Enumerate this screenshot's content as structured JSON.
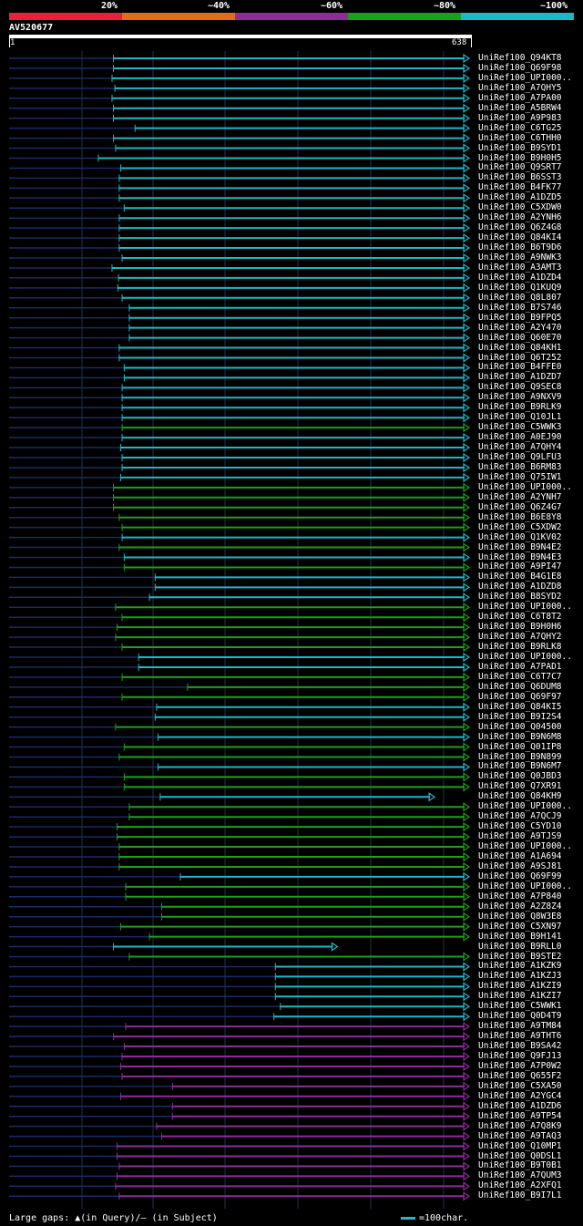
{
  "legend": [
    {
      "label": "20%",
      "color": "#e8213a"
    },
    {
      "label": "~40%",
      "color": "#e36b1c"
    },
    {
      "label": "~60%",
      "color": "#8f2b9b"
    },
    {
      "label": "~80%",
      "color": "#1aa11a"
    },
    {
      "label": "~100%",
      "color": "#1ab8c8"
    }
  ],
  "query": {
    "id": "AV520677",
    "start": "1",
    "end": "638"
  },
  "hits": [
    {
      "name": "UniRef100_Q94KT8",
      "color": "#1ab8c8",
      "start": 145,
      "end": 638
    },
    {
      "name": "UniRef100_Q69F98",
      "color": "#1ab8c8",
      "start": 145,
      "end": 638
    },
    {
      "name": "UniRef100_UPI000..",
      "color": "#1ab8c8",
      "start": 143,
      "end": 638
    },
    {
      "name": "UniRef100_A7QHY5",
      "color": "#1ab8c8",
      "start": 147,
      "end": 638
    },
    {
      "name": "UniRef100_A7PA00",
      "color": "#1ab8c8",
      "start": 143,
      "end": 638
    },
    {
      "name": "UniRef100_A5BRW4",
      "color": "#1ab8c8",
      "start": 145,
      "end": 638
    },
    {
      "name": "UniRef100_A9P983",
      "color": "#1ab8c8",
      "start": 145,
      "end": 638
    },
    {
      "name": "UniRef100_C6TG25",
      "color": "#1ab8c8",
      "start": 175,
      "end": 638
    },
    {
      "name": "UniRef100_C6THH0",
      "color": "#1ab8c8",
      "start": 145,
      "end": 638
    },
    {
      "name": "UniRef100_B9SYD1",
      "color": "#1ab8c8",
      "start": 148,
      "end": 638
    },
    {
      "name": "UniRef100_B9H0H5",
      "color": "#1ab8c8",
      "start": 124,
      "end": 638
    },
    {
      "name": "UniRef100_Q9SRT7",
      "color": "#1ab8c8",
      "start": 155,
      "end": 638
    },
    {
      "name": "UniRef100_B6SST3",
      "color": "#1ab8c8",
      "start": 153,
      "end": 638
    },
    {
      "name": "UniRef100_B4FK77",
      "color": "#1ab8c8",
      "start": 153,
      "end": 638
    },
    {
      "name": "UniRef100_A1DZD5",
      "color": "#1ab8c8",
      "start": 153,
      "end": 638
    },
    {
      "name": "UniRef100_C5XDW0",
      "color": "#1ab8c8",
      "start": 160,
      "end": 638
    },
    {
      "name": "UniRef100_A2YNH6",
      "color": "#1ab8c8",
      "start": 153,
      "end": 638
    },
    {
      "name": "UniRef100_Q6Z4G8",
      "color": "#1ab8c8",
      "start": 153,
      "end": 638
    },
    {
      "name": "UniRef100_Q84KI4",
      "color": "#1ab8c8",
      "start": 153,
      "end": 638
    },
    {
      "name": "UniRef100_B6T9D6",
      "color": "#1ab8c8",
      "start": 153,
      "end": 638
    },
    {
      "name": "UniRef100_A9NWK3",
      "color": "#1ab8c8",
      "start": 157,
      "end": 638
    },
    {
      "name": "UniRef100_A3AMT3",
      "color": "#1ab8c8",
      "start": 143,
      "end": 638
    },
    {
      "name": "UniRef100_A1DZD4",
      "color": "#1ab8c8",
      "start": 152,
      "end": 638
    },
    {
      "name": "UniRef100_Q1KUQ9",
      "color": "#1ab8c8",
      "start": 151,
      "end": 638
    },
    {
      "name": "UniRef100_Q8L807",
      "color": "#1ab8c8",
      "start": 157,
      "end": 638
    },
    {
      "name": "UniRef100_B7S746",
      "color": "#1ab8c8",
      "start": 167,
      "end": 638
    },
    {
      "name": "UniRef100_B9FPQ5",
      "color": "#1ab8c8",
      "start": 167,
      "end": 638
    },
    {
      "name": "UniRef100_A2Y470",
      "color": "#1ab8c8",
      "start": 167,
      "end": 638
    },
    {
      "name": "UniRef100_Q60E70",
      "color": "#1ab8c8",
      "start": 167,
      "end": 638
    },
    {
      "name": "UniRef100_Q84KH1",
      "color": "#1ab8c8",
      "start": 153,
      "end": 638
    },
    {
      "name": "UniRef100_Q6T252",
      "color": "#1ab8c8",
      "start": 153,
      "end": 638
    },
    {
      "name": "UniRef100_B4FFE0",
      "color": "#1ab8c8",
      "start": 160,
      "end": 638
    },
    {
      "name": "UniRef100_A1DZD7",
      "color": "#1ab8c8",
      "start": 160,
      "end": 638
    },
    {
      "name": "UniRef100_Q9SEC8",
      "color": "#1ab8c8",
      "start": 157,
      "end": 638
    },
    {
      "name": "UniRef100_A9NXV9",
      "color": "#1ab8c8",
      "start": 157,
      "end": 638
    },
    {
      "name": "UniRef100_B9RLK9",
      "color": "#1ab8c8",
      "start": 157,
      "end": 638
    },
    {
      "name": "UniRef100_Q10JL1",
      "color": "#1ab8c8",
      "start": 157,
      "end": 638
    },
    {
      "name": "UniRef100_C5WWK3",
      "color": "#1aa11a",
      "start": 157,
      "end": 638
    },
    {
      "name": "UniRef100_A0EJ90",
      "color": "#1ab8c8",
      "start": 157,
      "end": 638
    },
    {
      "name": "UniRef100_A7QHY4",
      "color": "#1ab8c8",
      "start": 155,
      "end": 638
    },
    {
      "name": "UniRef100_Q9LFU3",
      "color": "#1ab8c8",
      "start": 157,
      "end": 638
    },
    {
      "name": "UniRef100_B6RM83",
      "color": "#1ab8c8",
      "start": 157,
      "end": 638
    },
    {
      "name": "UniRef100_Q75IW1",
      "color": "#1ab8c8",
      "start": 155,
      "end": 638
    },
    {
      "name": "UniRef100_UPI000..",
      "color": "#1aa11a",
      "start": 145,
      "end": 638
    },
    {
      "name": "UniRef100_A2YNH7",
      "color": "#1aa11a",
      "start": 145,
      "end": 638
    },
    {
      "name": "UniRef100_Q6Z4G7",
      "color": "#1aa11a",
      "start": 145,
      "end": 638
    },
    {
      "name": "UniRef100_B6E8Y8",
      "color": "#1aa11a",
      "start": 153,
      "end": 638
    },
    {
      "name": "UniRef100_C5XDW2",
      "color": "#1aa11a",
      "start": 157,
      "end": 638
    },
    {
      "name": "UniRef100_Q1KV02",
      "color": "#1ab8c8",
      "start": 157,
      "end": 638
    },
    {
      "name": "UniRef100_B9N4E2",
      "color": "#1aa11a",
      "start": 153,
      "end": 638
    },
    {
      "name": "UniRef100_B9N4E3",
      "color": "#1ab8c8",
      "start": 160,
      "end": 638
    },
    {
      "name": "UniRef100_A9PI47",
      "color": "#1aa11a",
      "start": 160,
      "end": 638
    },
    {
      "name": "UniRef100_B4G1E8",
      "color": "#1ab8c8",
      "start": 203,
      "end": 638
    },
    {
      "name": "UniRef100_A1DZD8",
      "color": "#1ab8c8",
      "start": 203,
      "end": 638
    },
    {
      "name": "UniRef100_B8SYD2",
      "color": "#1ab8c8",
      "start": 195,
      "end": 638
    },
    {
      "name": "UniRef100_UPI000..",
      "color": "#1aa11a",
      "start": 148,
      "end": 638
    },
    {
      "name": "UniRef100_C6T8T2",
      "color": "#1aa11a",
      "start": 157,
      "end": 638
    },
    {
      "name": "UniRef100_B9H0H6",
      "color": "#1aa11a",
      "start": 150,
      "end": 638
    },
    {
      "name": "UniRef100_A7QHY2",
      "color": "#1aa11a",
      "start": 148,
      "end": 638
    },
    {
      "name": "UniRef100_B9RLK8",
      "color": "#1aa11a",
      "start": 157,
      "end": 638
    },
    {
      "name": "UniRef100_UPI000..",
      "color": "#1ab8c8",
      "start": 180,
      "end": 638
    },
    {
      "name": "UniRef100_A7PAD1",
      "color": "#1ab8c8",
      "start": 180,
      "end": 638
    },
    {
      "name": "UniRef100_C6T7C7",
      "color": "#1aa11a",
      "start": 157,
      "end": 638
    },
    {
      "name": "UniRef100_Q6DUM8",
      "color": "#1aa11a",
      "start": 248,
      "end": 638
    },
    {
      "name": "UniRef100_Q69F97",
      "color": "#1aa11a",
      "start": 157,
      "end": 638
    },
    {
      "name": "UniRef100_Q84KI5",
      "color": "#1ab8c8",
      "start": 205,
      "end": 638
    },
    {
      "name": "UniRef100_B9I2S4",
      "color": "#1ab8c8",
      "start": 203,
      "end": 638
    },
    {
      "name": "UniRef100_Q04500",
      "color": "#1aa11a",
      "start": 148,
      "end": 638
    },
    {
      "name": "UniRef100_B9N6M8",
      "color": "#1ab8c8",
      "start": 207,
      "end": 638
    },
    {
      "name": "UniRef100_Q01IP8",
      "color": "#1aa11a",
      "start": 160,
      "end": 638
    },
    {
      "name": "UniRef100_B9N899",
      "color": "#1aa11a",
      "start": 153,
      "end": 638
    },
    {
      "name": "UniRef100_B9N6M7",
      "color": "#1ab8c8",
      "start": 207,
      "end": 638
    },
    {
      "name": "UniRef100_Q0JBD3",
      "color": "#1aa11a",
      "start": 160,
      "end": 638
    },
    {
      "name": "UniRef100_Q7XR91",
      "color": "#1aa11a",
      "start": 160,
      "end": 638
    },
    {
      "name": "UniRef100_Q84KH9",
      "color": "#1ab8c8",
      "start": 210,
      "end": 590
    },
    {
      "name": "UniRef100_UPI000..",
      "color": "#1aa11a",
      "start": 167,
      "end": 638
    },
    {
      "name": "UniRef100_A7QCJ9",
      "color": "#1aa11a",
      "start": 167,
      "end": 638
    },
    {
      "name": "UniRef100_C5YD10",
      "color": "#1aa11a",
      "start": 150,
      "end": 638
    },
    {
      "name": "UniRef100_A9TJS9",
      "color": "#1aa11a",
      "start": 150,
      "end": 638
    },
    {
      "name": "UniRef100_UPI000..",
      "color": "#1aa11a",
      "start": 153,
      "end": 638
    },
    {
      "name": "UniRef100_A1A694",
      "color": "#1aa11a",
      "start": 153,
      "end": 638
    },
    {
      "name": "UniRef100_A9SJ81",
      "color": "#1aa11a",
      "start": 153,
      "end": 638
    },
    {
      "name": "UniRef100_Q69F99",
      "color": "#1ab8c8",
      "start": 238,
      "end": 638
    },
    {
      "name": "UniRef100_UPI000..",
      "color": "#1aa11a",
      "start": 162,
      "end": 638
    },
    {
      "name": "UniRef100_A7P840",
      "color": "#1aa11a",
      "start": 162,
      "end": 638
    },
    {
      "name": "UniRef100_A2Z8Z4",
      "color": "#1aa11a",
      "start": 212,
      "end": 638
    },
    {
      "name": "UniRef100_Q8W3E8",
      "color": "#1aa11a",
      "start": 212,
      "end": 638
    },
    {
      "name": "UniRef100_C5XN97",
      "color": "#1aa11a",
      "start": 155,
      "end": 638
    },
    {
      "name": "UniRef100_B9H141",
      "color": "#1aa11a",
      "start": 195,
      "end": 638
    },
    {
      "name": "UniRef100_B9RLL0",
      "color": "#1ab8c8",
      "start": 145,
      "end": 455
    },
    {
      "name": "UniRef100_B9STE2",
      "color": "#1aa11a",
      "start": 167,
      "end": 638
    },
    {
      "name": "UniRef100_A1KZK9",
      "color": "#1ab8c8",
      "start": 370,
      "end": 638
    },
    {
      "name": "UniRef100_A1KZJ3",
      "color": "#1ab8c8",
      "start": 370,
      "end": 638
    },
    {
      "name": "UniRef100_A1KZI9",
      "color": "#1ab8c8",
      "start": 370,
      "end": 638
    },
    {
      "name": "UniRef100_A1KZI7",
      "color": "#1ab8c8",
      "start": 370,
      "end": 638
    },
    {
      "name": "UniRef100_C5WWK1",
      "color": "#1ab8c8",
      "start": 377,
      "end": 638
    },
    {
      "name": "UniRef100_Q0D4T9",
      "color": "#1ab8c8",
      "start": 368,
      "end": 638
    },
    {
      "name": "UniRef100_A9TM84",
      "color": "#8f2b9b",
      "start": 162,
      "end": 638
    },
    {
      "name": "UniRef100_A9THT6",
      "color": "#8f2b9b",
      "start": 145,
      "end": 638
    },
    {
      "name": "UniRef100_B9SA42",
      "color": "#8f2b9b",
      "start": 160,
      "end": 638
    },
    {
      "name": "UniRef100_Q9FJ13",
      "color": "#8f2b9b",
      "start": 157,
      "end": 638
    },
    {
      "name": "UniRef100_A7P0W2",
      "color": "#8f2b9b",
      "start": 155,
      "end": 638
    },
    {
      "name": "UniRef100_Q655F2",
      "color": "#8f2b9b",
      "start": 157,
      "end": 638
    },
    {
      "name": "UniRef100_C5XA50",
      "color": "#8f2b9b",
      "start": 227,
      "end": 638
    },
    {
      "name": "UniRef100_A2YGC4",
      "color": "#8f2b9b",
      "start": 155,
      "end": 638
    },
    {
      "name": "UniRef100_A1DZD6",
      "color": "#8f2b9b",
      "start": 227,
      "end": 638
    },
    {
      "name": "UniRef100_A9TP54",
      "color": "#8f2b9b",
      "start": 227,
      "end": 638
    },
    {
      "name": "UniRef100_A7Q8K9",
      "color": "#8f2b9b",
      "start": 205,
      "end": 638
    },
    {
      "name": "UniRef100_A9TAQ3",
      "color": "#8f2b9b",
      "start": 212,
      "end": 638
    },
    {
      "name": "UniRef100_Q10MP1",
      "color": "#8f2b9b",
      "start": 150,
      "end": 638
    },
    {
      "name": "UniRef100_Q0DSL1",
      "color": "#8f2b9b",
      "start": 150,
      "end": 638
    },
    {
      "name": "UniRef100_B9T0B1",
      "color": "#8f2b9b",
      "start": 153,
      "end": 638
    },
    {
      "name": "UniRef100_A7QUM3",
      "color": "#8f2b9b",
      "start": 150,
      "end": 638
    },
    {
      "name": "UniRef100_A2XFQ1",
      "color": "#8f2b9b",
      "start": 148,
      "end": 638
    },
    {
      "name": "UniRef100_B9I7L1",
      "color": "#8f2b9b",
      "start": 153,
      "end": 638
    }
  ],
  "footer": {
    "gaps_text": "Large gaps: ▲(in Query)/– (in Subject)",
    "scale_text": "=100char.",
    "scale_color": "#1ab8c8"
  }
}
